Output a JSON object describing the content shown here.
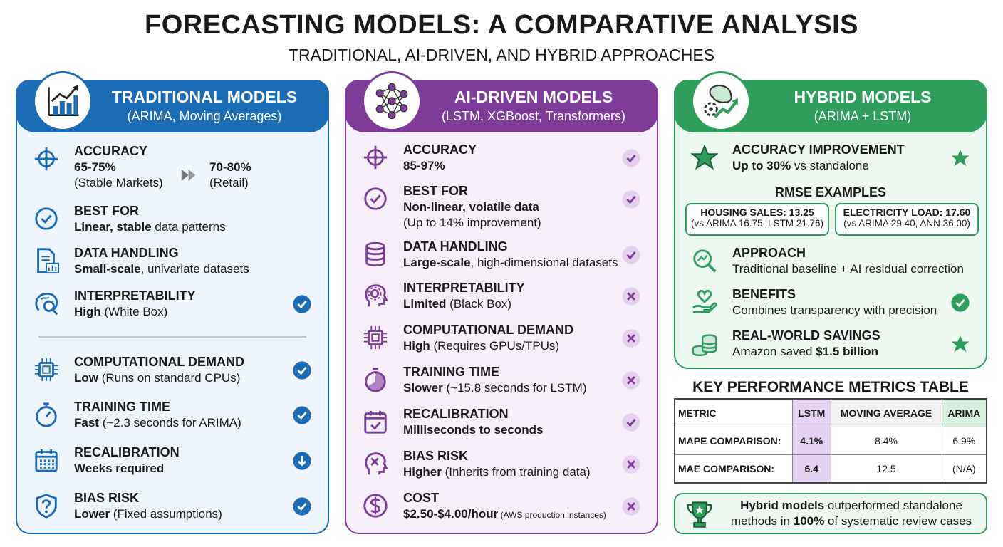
{
  "header": {
    "title": "FORECASTING MODELS: A COMPARATIVE ANALYSIS",
    "subtitle": "TRADITIONAL, AI-DRIVEN, AND HYBRID APPROACHES"
  },
  "panels": [
    {
      "title": "TRADITIONAL MODELS",
      "subtitle": "(ARIMA, Moving Averages)",
      "color": "#1c6bb5",
      "background": "#edf4fc",
      "items": [
        {
          "label": "ACCURACY",
          "compare": [
            {
              "lines": [
                [
                  {
                    "text": "65-75%",
                    "bold": true
                  }
                ],
                [
                  {
                    "text": "(Stable Markets)"
                  }
                ]
              ]
            },
            {
              "lines": [
                [
                  {
                    "text": "70-80%",
                    "bold": true
                  }
                ],
                [
                  {
                    "text": "(Retail)"
                  }
                ]
              ]
            }
          ]
        },
        {
          "label": "BEST FOR",
          "lines": [
            [
              {
                "text": "Linear, stable",
                "bold": true
              },
              {
                "text": " data patterns"
              }
            ]
          ]
        },
        {
          "label": "DATA HANDLING",
          "lines": [
            [
              {
                "text": "Small-scale",
                "bold": true
              },
              {
                "text": ", univariate datasets"
              }
            ]
          ]
        },
        {
          "label": "INTERPRETABILITY",
          "lines": [
            [
              {
                "text": "High",
                "bold": true
              },
              {
                "text": " (White Box)"
              }
            ]
          ],
          "status": "check"
        },
        {
          "label": "COMPUTATIONAL DEMAND",
          "lines": [
            [
              {
                "text": "Low",
                "bold": true
              },
              {
                "text": " (Runs on standard CPUs)"
              }
            ]
          ],
          "status": "check",
          "divider_before": true
        },
        {
          "label": "TRAINING TIME",
          "lines": [
            [
              {
                "text": "Fast",
                "bold": true
              },
              {
                "text": " (~2.3 seconds for ARIMA)"
              }
            ]
          ],
          "status": "check"
        },
        {
          "label": "RECALIBRATION",
          "lines": [
            [
              {
                "text": "Weeks required",
                "bold": true
              }
            ]
          ],
          "status": "down"
        },
        {
          "label": "BIAS RISK",
          "lines": [
            [
              {
                "text": "Lower",
                "bold": true
              },
              {
                "text": " (Fixed assumptions)"
              }
            ]
          ],
          "status": "check"
        }
      ]
    },
    {
      "title": "AI-DRIVEN MODELS",
      "subtitle": "(LSTM, XGBoost, Transformers)",
      "color": "#7d3c98",
      "background": "#f6eff9",
      "items": [
        {
          "label": "ACCURACY",
          "lines": [
            [
              {
                "text": "85-97%",
                "bold": true
              }
            ]
          ],
          "status": "check"
        },
        {
          "label": "BEST FOR",
          "lines": [
            [
              {
                "text": "Non-linear, volatile data",
                "bold": true
              }
            ],
            [
              {
                "text": "(Up to 14% improvement)"
              }
            ]
          ],
          "status": "check"
        },
        {
          "label": "DATA HANDLING",
          "lines": [
            [
              {
                "text": "Large-scale",
                "bold": true
              },
              {
                "text": ", high-dimensional datasets"
              }
            ]
          ],
          "status": "check"
        },
        {
          "label": "INTERPRETABILITY",
          "lines": [
            [
              {
                "text": "Limited",
                "bold": true
              },
              {
                "text": " (Black Box)"
              }
            ]
          ],
          "status": "x"
        },
        {
          "label": "COMPUTATIONAL DEMAND",
          "lines": [
            [
              {
                "text": "High",
                "bold": true
              },
              {
                "text": " (Requires GPUs/TPUs)"
              }
            ]
          ],
          "status": "x"
        },
        {
          "label": "TRAINING TIME",
          "lines": [
            [
              {
                "text": "Slower",
                "bold": true
              },
              {
                "text": " (~15.8 seconds for LSTM)"
              }
            ]
          ],
          "status": "x"
        },
        {
          "label": "RECALIBRATION",
          "lines": [
            [
              {
                "text": "Milliseconds to seconds",
                "bold": true
              }
            ]
          ],
          "status": "check"
        },
        {
          "label": "BIAS RISK",
          "lines": [
            [
              {
                "text": "Higher",
                "bold": true
              },
              {
                "text": " (Inherits from training data)"
              }
            ]
          ],
          "status": "x"
        },
        {
          "label": "COST",
          "lines": [
            [
              {
                "text": "$2.50-$4.00/hour",
                "bold": true
              },
              {
                "text": " (AWS production instances)",
                "small": true
              }
            ]
          ],
          "status": "x"
        }
      ]
    },
    {
      "title": "HYBRID MODELS",
      "subtitle": "(ARIMA + LSTM)",
      "color": "#2f9e5c",
      "background": "#edf8f1",
      "items": [
        {
          "label": "ACCURACY IMPROVEMENT",
          "lines": [
            [
              {
                "text": "Up to 30%",
                "bold": true
              },
              {
                "text": " vs standalone"
              }
            ]
          ],
          "status": "star"
        },
        {
          "label": "APPROACH",
          "lines": [
            [
              {
                "text": "Traditional baseline + AI residual correction"
              }
            ]
          ]
        },
        {
          "label": "BENEFITS",
          "lines": [
            [
              {
                "text": "Combines transparency with precision"
              }
            ]
          ],
          "status": "check"
        },
        {
          "label": "REAL-WORLD SAVINGS",
          "lines": [
            [
              {
                "text": "Amazon saved "
              },
              {
                "text": "$1.5 billion",
                "bold": true
              }
            ]
          ],
          "status": "star"
        }
      ],
      "rmse": {
        "title": "RMSE EXAMPLES",
        "boxes": [
          {
            "title": "HOUSING SALES: 13.25",
            "detail": "(vs ARIMA 16.75, LSTM 21.76)"
          },
          {
            "title": "ELECTRICITY LOAD: 17.60",
            "detail": "(vs ARIMA 29.40, ANN 36.00)"
          }
        ]
      }
    }
  ],
  "table": {
    "title": "KEY PERFORMANCE METRICS TABLE",
    "header": [
      "METRIC",
      "LSTM",
      "MOVING AVERAGE",
      "ARIMA"
    ],
    "rows": [
      [
        "MAPE COMPARISON:",
        "4.1%",
        "8.4%",
        "6.9%"
      ],
      [
        "MAE COMPARISON:",
        "6.4",
        "12.5",
        "(N/A)"
      ]
    ]
  },
  "footer": {
    "segments": [
      {
        "text": "Hybrid models",
        "bold": true
      },
      {
        "text": " outperformed standalone methods in "
      },
      {
        "text": "100%",
        "bold": true
      },
      {
        "text": " of systematic review cases"
      }
    ]
  }
}
